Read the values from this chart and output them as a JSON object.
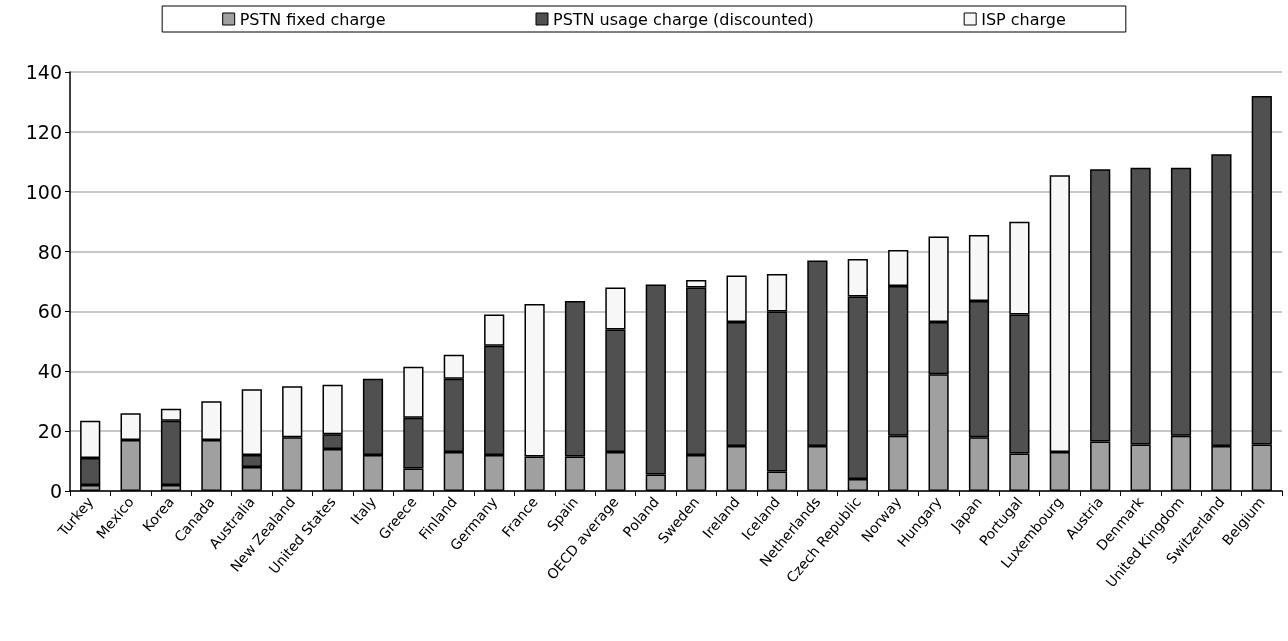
{
  "chart_data": {
    "type": "bar",
    "stacked": true,
    "categories": [
      "Turkey",
      "Mexico",
      "Korea",
      "Canada",
      "Australia",
      "New Zealand",
      "United States",
      "Italy",
      "Greece",
      "Finland",
      "Germany",
      "France",
      "Spain",
      "OECD average",
      "Poland",
      "Sweden",
      "Ireland",
      "Iceland",
      "Netherlands",
      "Czech Republic",
      "Norway",
      "Hungary",
      "Japan",
      "Portugal",
      "Luxembourg",
      "Austria",
      "Denmark",
      "United Kingdom",
      "Switzerland",
      "Belgium"
    ],
    "series": [
      {
        "name": "PSTN fixed charge",
        "color": "#a0a0a0",
        "values": [
          2,
          17,
          2,
          17,
          8,
          18,
          14,
          12,
          7.5,
          13,
          12,
          11.5,
          11.5,
          13,
          5.5,
          12,
          15,
          6.5,
          15,
          4,
          18.5,
          39,
          18,
          12.5,
          13,
          16.5,
          15.5,
          18.5,
          15,
          15.5
        ]
      },
      {
        "name": "PSTN usage charge (discounted)",
        "color": "#505050",
        "values": [
          9,
          null,
          21.5,
          null,
          4,
          null,
          5,
          25.5,
          17,
          24.5,
          36.5,
          null,
          52,
          41,
          63.5,
          56,
          41.5,
          53.5,
          62,
          61,
          50,
          17.5,
          45.5,
          46.5,
          null,
          91,
          92.5,
          89.5,
          97.5,
          116.5
        ]
      },
      {
        "name": "ISP charge",
        "color": "#f7f7f7",
        "values": [
          12.5,
          9,
          4,
          13,
          22,
          17,
          16.5,
          null,
          17,
          8,
          10.5,
          51,
          null,
          14,
          null,
          2.5,
          15.5,
          12.5,
          null,
          12.5,
          12,
          28.5,
          22,
          31,
          92.5,
          null,
          null,
          null,
          null,
          null
        ]
      }
    ],
    "ylim": [
      0,
      140
    ],
    "yticks": [
      0,
      20,
      40,
      60,
      80,
      100,
      120,
      140
    ],
    "grid": "y",
    "legend": "top"
  }
}
